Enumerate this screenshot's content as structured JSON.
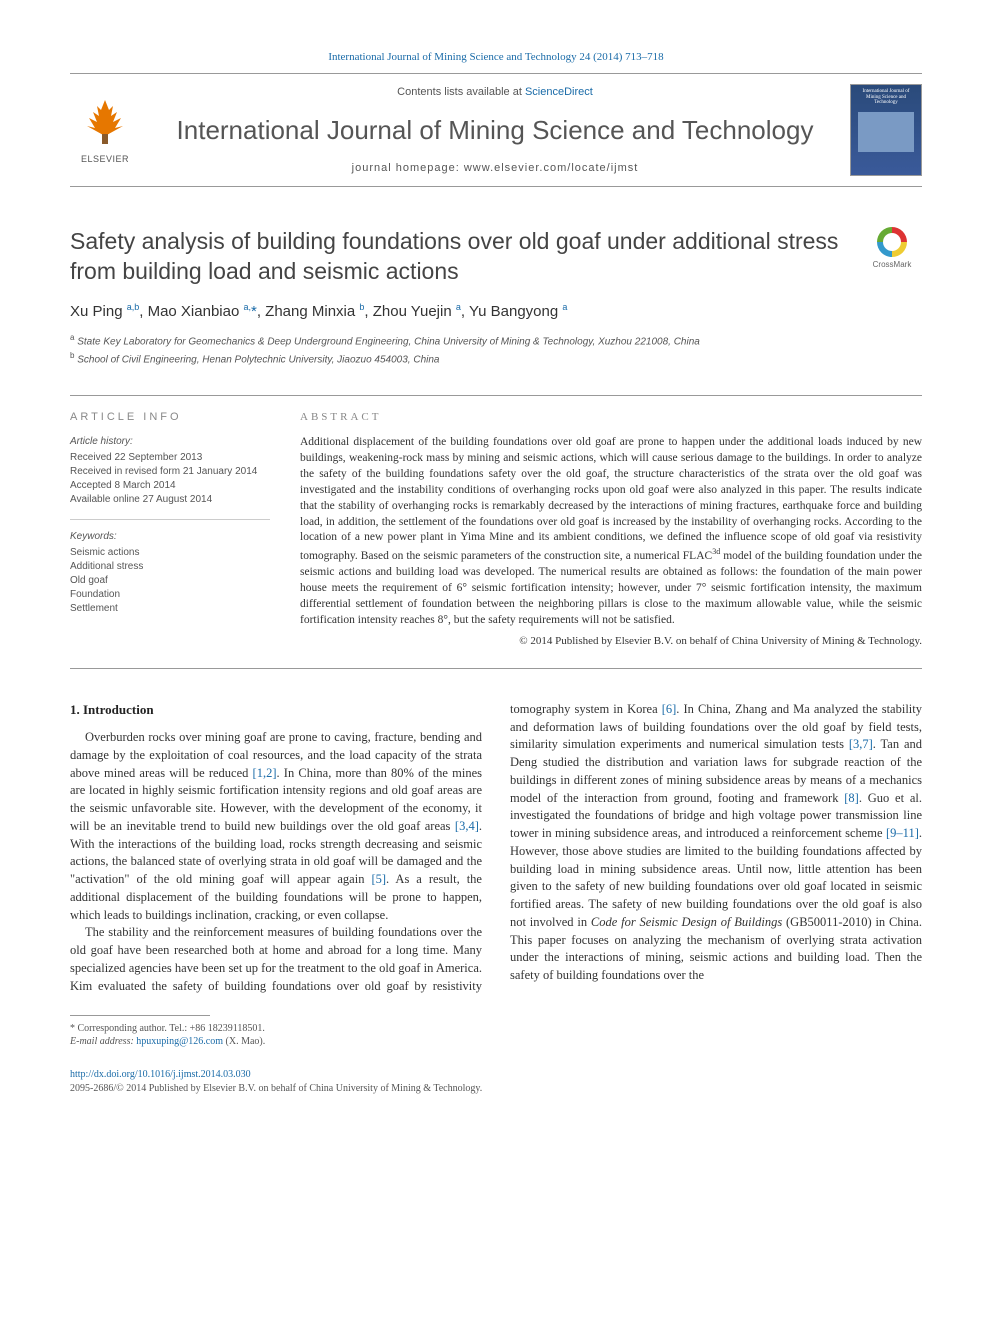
{
  "header": {
    "citation": "International Journal of Mining Science and Technology 24 (2014) 713–718",
    "contents_prefix": "Contents lists available at ",
    "contents_link": "ScienceDirect",
    "journal_title": "International Journal of Mining Science and Technology",
    "homepage_prefix": "journal homepage: ",
    "homepage_url": "www.elsevier.com/locate/ijmst",
    "publisher_name": "ELSEVIER",
    "cover_title": "International Journal of Mining Science and Technology"
  },
  "article": {
    "title": "Safety analysis of building foundations over old goaf under additional stress from building load and seismic actions",
    "crossmark_label": "CrossMark",
    "authors_html": "Xu Ping <sup>a,b</sup>, Mao Xianbiao <sup>a,</sup><span class='star'>*</span>, Zhang Minxia <sup>b</sup>, Zhou Yuejin <sup>a</sup>, Yu Bangyong <sup>a</sup>",
    "affiliations": [
      "a State Key Laboratory for Geomechanics & Deep Underground Engineering, China University of Mining & Technology, Xuzhou 221008, China",
      "b School of Civil Engineering, Henan Polytechnic University, Jiaozuo 454003, China"
    ]
  },
  "info": {
    "label": "ARTICLE INFO",
    "history_label": "Article history:",
    "history": [
      "Received 22 September 2013",
      "Received in revised form 21 January 2014",
      "Accepted 8 March 2014",
      "Available online 27 August 2014"
    ],
    "keywords_label": "Keywords:",
    "keywords": [
      "Seismic actions",
      "Additional stress",
      "Old goaf",
      "Foundation",
      "Settlement"
    ]
  },
  "abstract": {
    "label": "ABSTRACT",
    "text": "Additional displacement of the building foundations over old goaf are prone to happen under the additional loads induced by new buildings, weakening-rock mass by mining and seismic actions, which will cause serious damage to the buildings. In order to analyze the safety of the building foundations safety over the old goaf, the structure characteristics of the strata over the old goaf was investigated and the instability conditions of overhanging rocks upon old goaf were also analyzed in this paper. The results indicate that the stability of overhanging rocks is remarkably decreased by the interactions of mining fractures, earthquake force and building load, in addition, the settlement of the foundations over old goaf is increased by the instability of overhanging rocks. According to the location of a new power plant in Yima Mine and its ambient conditions, we defined the influence scope of old goaf via resistivity tomography. Based on the seismic parameters of the construction site, a numerical FLAC3d model of the building foundation under the seismic actions and building load was developed. The numerical results are obtained as follows: the foundation of the main power house meets the requirement of 6° seismic fortification intensity; however, under 7° seismic fortification intensity, the maximum differential settlement of foundation between the neighboring pillars is close to the maximum allowable value, while the seismic fortification intensity reaches 8°, but the safety requirements will not be satisfied.",
    "copyright": "© 2014 Published by Elsevier B.V. on behalf of China University of Mining & Technology."
  },
  "body": {
    "heading": "1. Introduction",
    "p1": "Overburden rocks over mining goaf are prone to caving, fracture, bending and damage by the exploitation of coal resources, and the load capacity of the strata above mined areas will be reduced [1,2]. In China, more than 80% of the mines are located in highly seismic fortification intensity regions and old goaf areas are the seismic unfavorable site. However, with the development of the economy, it will be an inevitable trend to build new buildings over the old goaf areas [3,4]. With the interactions of the building load, rocks strength decreasing and seismic actions, the balanced state of overlying strata in old goaf will be damaged and the \"activation\" of the old mining goaf will appear again [5]. As a result, the additional displacement of the building foundations will be prone to happen, which leads to buildings inclination, cracking, or even collapse.",
    "p2": "The stability and the reinforcement measures of building foundations over the old goaf have been researched both at home and abroad for a long time. Many specialized agencies have been set up for the treatment to the old goaf in America. Kim evaluated the safety of building foundations over old goaf by resistivity tomography system in Korea [6]. In China, Zhang and Ma analyzed the stability and deformation laws of building foundations over the old goaf by field tests, similarity simulation experiments and numerical simulation tests [3,7]. Tan and Deng studied the distribution and variation laws for subgrade reaction of the buildings in different zones of mining subsidence areas by means of a mechanics model of the interaction from ground, footing and framework [8]. Guo et al. investigated the foundations of bridge and high voltage power transmission line tower in mining subsidence areas, and introduced a reinforcement scheme [9–11]. However, those above studies are limited to the building foundations affected by building load in mining subsidence areas. Until now, little attention has been given to the safety of new building foundations over old goaf located in seismic fortified areas. The safety of new building foundations over the old goaf is also not involved in Code for Seismic Design of Buildings (GB50011-2010) in China. This paper focuses on analyzing the mechanism of overlying strata activation under the interactions of mining, seismic actions and building load. Then the safety of building foundations over the"
  },
  "footnote": {
    "corr_label": "* Corresponding author. Tel.: +86 18239118501.",
    "email_label": "E-mail address: ",
    "email": "hpuxuping@126.com",
    "email_who": " (X. Mao)."
  },
  "footer": {
    "doi": "http://dx.doi.org/10.1016/j.ijmst.2014.03.030",
    "issn_line": "2095-2686/© 2014 Published by Elsevier B.V. on behalf of China University of Mining & Technology."
  },
  "colors": {
    "link": "#1a6ba8",
    "rule": "#999999",
    "text": "#333333",
    "orange": "#e67700"
  }
}
